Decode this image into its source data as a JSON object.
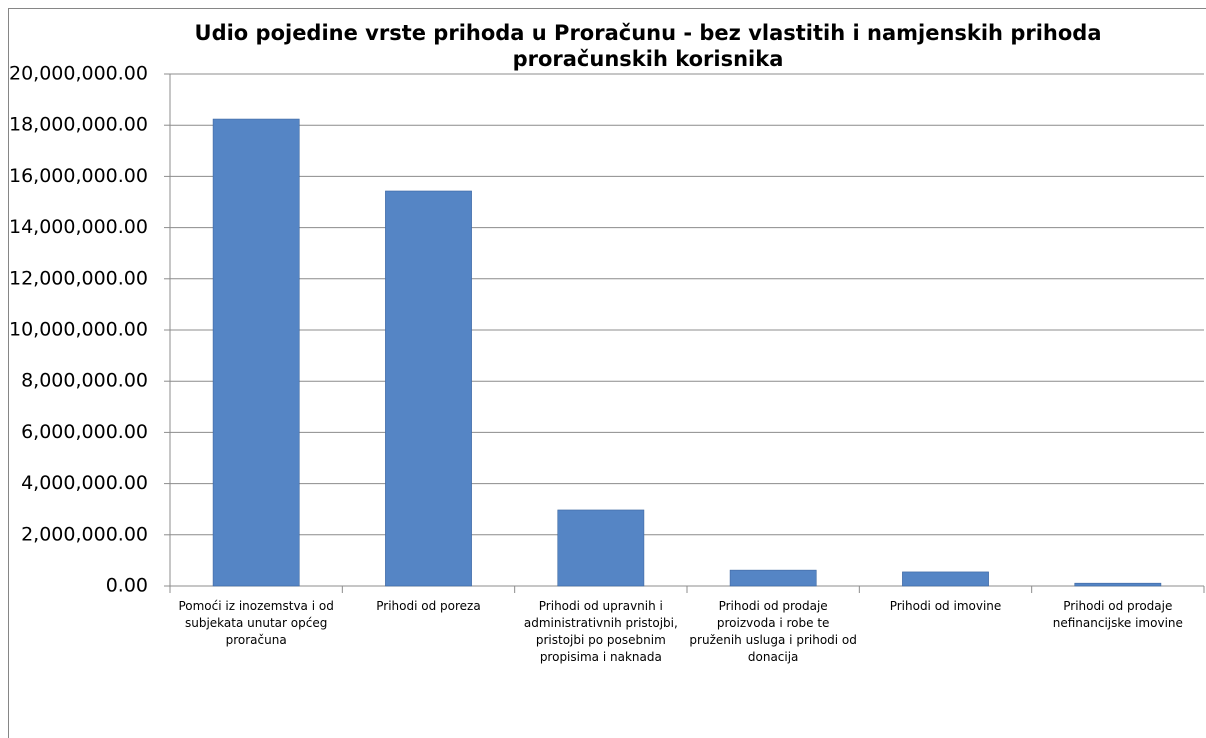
{
  "chart_data": {
    "type": "bar",
    "title": "Udio pojedine vrste prihoda u Proračunu - bez vlastitih i namjenskih prihoda proračunskih korisnika",
    "categories": [
      "Pomoći iz inozemstva i od subjekata unutar općeg proračuna",
      "Prihodi od poreza",
      "Prihodi od upravnih i administrativnih pristojbi, pristojbi po posebnim propisima i naknada",
      "Prihodi od prodaje proizvoda i robe te pruženih usluga i prihodi od donacija",
      "Prihodi od imovine",
      "Prihodi od prodaje nefinancijske imovine"
    ],
    "values": [
      18240000,
      15430000,
      2970000,
      620000,
      550000,
      110000
    ],
    "color": "#5585c5",
    "ylim": [
      0,
      20000000
    ],
    "yticks": [
      {
        "value": 0,
        "label": "0.00"
      },
      {
        "value": 2000000,
        "label": "2,000,000.00"
      },
      {
        "value": 4000000,
        "label": "4,000,000.00"
      },
      {
        "value": 6000000,
        "label": "6,000,000.00"
      },
      {
        "value": 8000000,
        "label": "8,000,000.00"
      },
      {
        "value": 10000000,
        "label": "10,000,000.00"
      },
      {
        "value": 12000000,
        "label": "12,000,000.00"
      },
      {
        "value": 14000000,
        "label": "14,000,000.00"
      },
      {
        "value": 16000000,
        "label": "16,000,000.00"
      },
      {
        "value": 18000000,
        "label": "18,000,000.00"
      },
      {
        "value": 20000000,
        "label": "20,000,000.00"
      }
    ],
    "grid": true
  }
}
